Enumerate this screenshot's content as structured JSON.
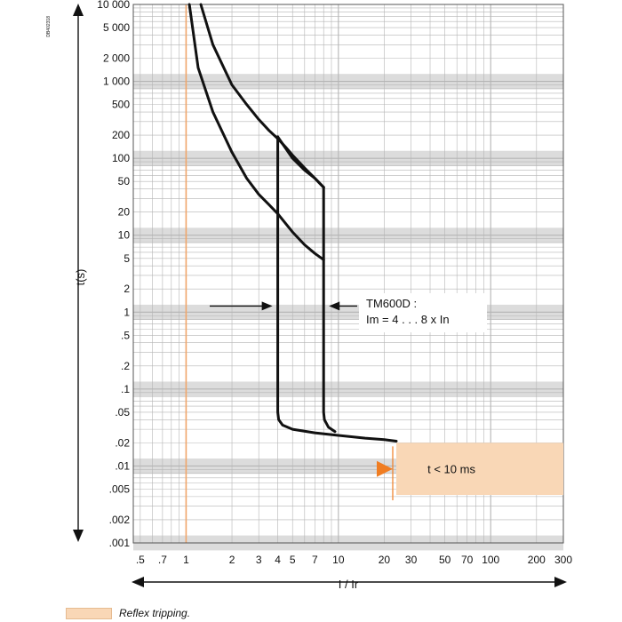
{
  "chart_data": {
    "type": "line",
    "title": "",
    "xlabel": "I / Ir",
    "ylabel": "t(s)",
    "x_scale": "log",
    "y_scale": "log",
    "xlim": [
      0.45,
      300
    ],
    "ylim": [
      0.001,
      10000
    ],
    "grid": true,
    "x_ticks": [
      {
        "v": 0.5,
        "label": ".5"
      },
      {
        "v": 0.7,
        "label": ".7"
      },
      {
        "v": 1,
        "label": "1"
      },
      {
        "v": 2,
        "label": "2"
      },
      {
        "v": 3,
        "label": "3"
      },
      {
        "v": 4,
        "label": "4"
      },
      {
        "v": 5,
        "label": "5"
      },
      {
        "v": 7,
        "label": "7"
      },
      {
        "v": 10,
        "label": "10"
      },
      {
        "v": 20,
        "label": "20"
      },
      {
        "v": 30,
        "label": "30"
      },
      {
        "v": 50,
        "label": "50"
      },
      {
        "v": 70,
        "label": "70"
      },
      {
        "v": 100,
        "label": "100"
      },
      {
        "v": 200,
        "label": "200"
      },
      {
        "v": 300,
        "label": "300"
      }
    ],
    "y_ticks": [
      {
        "v": 10000,
        "label": "10 000"
      },
      {
        "v": 5000,
        "label": "5 000"
      },
      {
        "v": 2000,
        "label": "2 000"
      },
      {
        "v": 1000,
        "label": "1 000"
      },
      {
        "v": 500,
        "label": "500"
      },
      {
        "v": 200,
        "label": "200"
      },
      {
        "v": 100,
        "label": "100"
      },
      {
        "v": 50,
        "label": "50"
      },
      {
        "v": 20,
        "label": "20"
      },
      {
        "v": 10,
        "label": "10"
      },
      {
        "v": 5,
        "label": "5"
      },
      {
        "v": 2,
        "label": "2"
      },
      {
        "v": 1,
        "label": "1"
      },
      {
        "v": 0.5,
        "label": ".5"
      },
      {
        "v": 0.2,
        "label": ".2"
      },
      {
        "v": 0.1,
        "label": ".1"
      },
      {
        "v": 0.05,
        "label": ".05"
      },
      {
        "v": 0.02,
        "label": ".02"
      },
      {
        "v": 0.01,
        "label": ".01"
      },
      {
        "v": 0.005,
        "label": ".005"
      },
      {
        "v": 0.002,
        "label": ".002"
      },
      {
        "v": 0.001,
        "label": ".001"
      }
    ],
    "series": [
      {
        "x": [
          1.05,
          1.2,
          1.5,
          2,
          2.5,
          3,
          3.5,
          4
        ],
        "y": [
          10000,
          1500,
          400,
          120,
          55,
          34,
          25,
          19
        ]
      },
      {
        "x": [
          1.25,
          1.5,
          2,
          2.5,
          3,
          3.5,
          4,
          4.5,
          5,
          6,
          7,
          8
        ],
        "y": [
          10000,
          3000,
          900,
          500,
          320,
          230,
          180,
          140,
          110,
          75,
          55,
          42
        ]
      },
      {
        "x": [
          4,
          5,
          6,
          7,
          8
        ],
        "y": [
          190,
          100,
          70,
          55,
          42
        ]
      },
      {
        "x": [
          4,
          5,
          6,
          7,
          8
        ],
        "y": [
          19,
          11,
          7.5,
          5.8,
          4.8
        ]
      },
      {
        "x": [
          4,
          4,
          4,
          4.05,
          4.3,
          5,
          7,
          10,
          15,
          20,
          24
        ],
        "y": [
          190,
          19,
          0.05,
          0.04,
          0.034,
          0.03,
          0.027,
          0.025,
          0.023,
          0.022,
          0.021
        ]
      },
      {
        "x": [
          8,
          8,
          8,
          8.1,
          8.6,
          9.5
        ],
        "y": [
          42,
          4.8,
          0.05,
          0.04,
          0.032,
          0.028
        ]
      }
    ],
    "reflex_region": {
      "x_from": 24,
      "x_to": 300,
      "y_from": 0.0042,
      "y_to": 0.02,
      "label": "t < 10 ms"
    },
    "reference_line_x": 1,
    "annotations": [
      {
        "id": "tm600d",
        "lines": [
          "TM600D :",
          "Im = 4 . . . 8 x In"
        ]
      }
    ],
    "colors": {
      "curve": "#111111",
      "reflex_fill": "#f9d7b6",
      "reflex_arrow": "#f07d22",
      "ref_line": "#f0a66a",
      "grid": "#b5b5b5"
    },
    "legend": {
      "label": "Reflex tripping.",
      "position": "bottom-left"
    },
    "side_code": "DB402318"
  }
}
